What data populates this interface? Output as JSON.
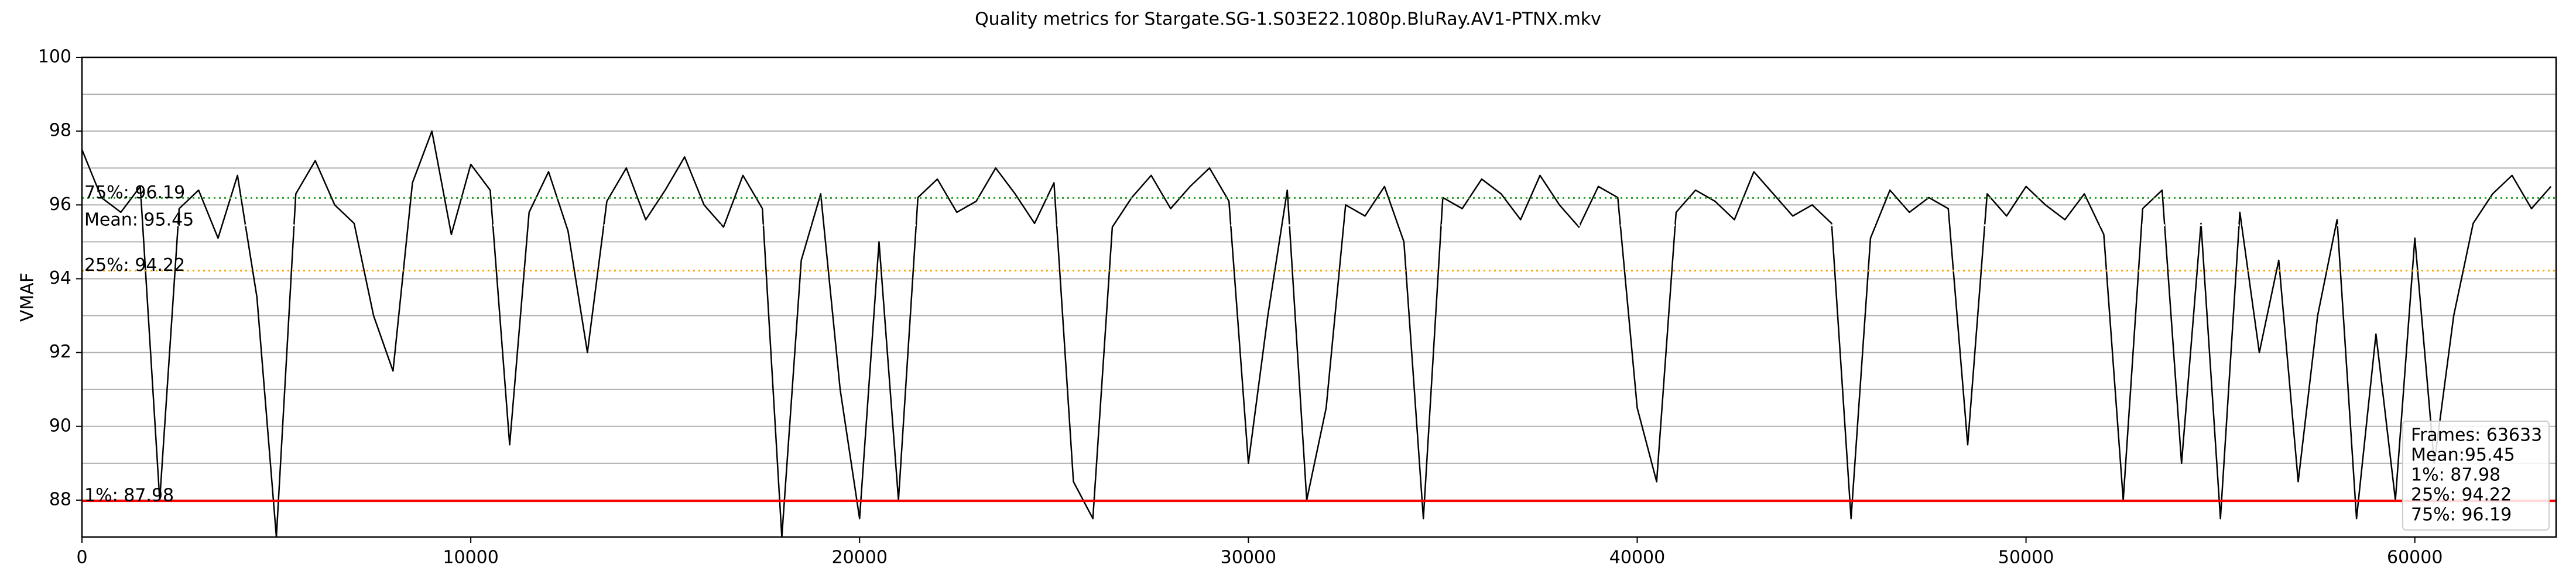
{
  "chart_data": {
    "type": "line",
    "title": "Quality metrics for Stargate.SG-1.S03E22.1080p.BluRay.AV1-PTNX.mkv",
    "y_label": "VMAF",
    "xlim": [
      0,
      63633
    ],
    "xticks": [
      0,
      10000,
      20000,
      30000,
      40000,
      50000,
      60000
    ],
    "ylim": [
      87,
      100
    ],
    "yticks": [
      88,
      90,
      92,
      94,
      96,
      98,
      100
    ],
    "yminorticks": [
      87,
      89,
      91,
      93,
      95,
      97,
      99
    ],
    "grid": true,
    "series": [
      {
        "color": "#000000",
        "x": [
          0,
          500,
          1000,
          1500,
          2000,
          2500,
          3000,
          3500,
          4000,
          4500,
          5000,
          5500,
          6000,
          6500,
          7000,
          7500,
          8000,
          8500,
          9000,
          9500,
          10000,
          10500,
          11000,
          11500,
          12000,
          12500,
          13000,
          13500,
          14000,
          14500,
          15000,
          15500,
          16000,
          16500,
          17000,
          17500,
          18000,
          18500,
          19000,
          19500,
          20000,
          20500,
          21000,
          21500,
          22000,
          22500,
          23000,
          23500,
          24000,
          24500,
          25000,
          25500,
          26000,
          26500,
          27000,
          27500,
          28000,
          28500,
          29000,
          29500,
          30000,
          30500,
          31000,
          31500,
          32000,
          32500,
          33000,
          33500,
          34000,
          34500,
          35000,
          35500,
          36000,
          36500,
          37000,
          37500,
          38000,
          38500,
          39000,
          39500,
          40000,
          40500,
          41000,
          41500,
          42000,
          42500,
          43000,
          43500,
          44000,
          44500,
          45000,
          45500,
          46000,
          46500,
          47000,
          47500,
          48000,
          48500,
          49000,
          49500,
          50000,
          50500,
          51000,
          51500,
          52000,
          52500,
          53000,
          53500,
          54000,
          54500,
          55000,
          55500,
          56000,
          56500,
          57000,
          57500,
          58000,
          58500,
          59000,
          59500,
          60000,
          60500,
          61000,
          61500,
          62000,
          62500,
          63000,
          63500
        ],
        "values": [
          97.5,
          96.2,
          95.8,
          96.5,
          88,
          95.9,
          96.4,
          95.1,
          96.8,
          93.5,
          87,
          96.3,
          97.2,
          96.0,
          95.5,
          93.0,
          91.5,
          96.6,
          98,
          95.2,
          97.1,
          96.4,
          89.5,
          95.8,
          96.9,
          95.3,
          92.0,
          96.1,
          97.0,
          95.6,
          96.4,
          97.3,
          96.0,
          95.4,
          96.8,
          95.9,
          87,
          94.5,
          96.3,
          91.0,
          87.5,
          95.0,
          88,
          96.2,
          96.7,
          95.8,
          96.1,
          97.0,
          96.3,
          95.5,
          96.6,
          88.5,
          87.5,
          95.4,
          96.2,
          96.8,
          95.9,
          96.5,
          97.0,
          96.1,
          89.0,
          93.0,
          96.4,
          88.0,
          90.5,
          96.0,
          95.7,
          96.5,
          95.0,
          87.5,
          96.2,
          95.9,
          96.7,
          96.3,
          95.6,
          96.8,
          96.0,
          95.4,
          96.5,
          96.2,
          90.5,
          88.5,
          95.8,
          96.4,
          96.1,
          95.6,
          96.9,
          96.3,
          95.7,
          96.0,
          95.5,
          87.5,
          95.1,
          96.4,
          95.8,
          96.2,
          95.9,
          89.5,
          96.3,
          95.7,
          96.5,
          96.0,
          95.6,
          96.3,
          95.2,
          88.0,
          95.9,
          96.4,
          89.0,
          95.5,
          87.5,
          95.8,
          92.0,
          94.5,
          88.5,
          93.0,
          95.6,
          87.5,
          92.5,
          88.0,
          95.1,
          89.0,
          93.0,
          95.5,
          96.3,
          96.8,
          95.9,
          96.5
        ]
      }
    ],
    "reference_lines": [
      {
        "label": "75%: 96.19",
        "value": 96.19,
        "color": "#2ca02c",
        "style": "dotted"
      },
      {
        "label": "Mean: 95.45",
        "value": 95.45,
        "color": "#ffffff",
        "style": "dotted"
      },
      {
        "label": "25%: 94.22",
        "value": 94.22,
        "color": "#ffa500",
        "style": "dotted"
      },
      {
        "label": "1%: 87.98",
        "value": 87.98,
        "color": "#ff0000",
        "style": "solid"
      }
    ],
    "stats_box": [
      "Frames: 63633",
      "Mean:95.45",
      "1%: 87.98",
      "25%: 94.22",
      "75%: 96.19"
    ],
    "stats_box_corner": "lower right"
  }
}
